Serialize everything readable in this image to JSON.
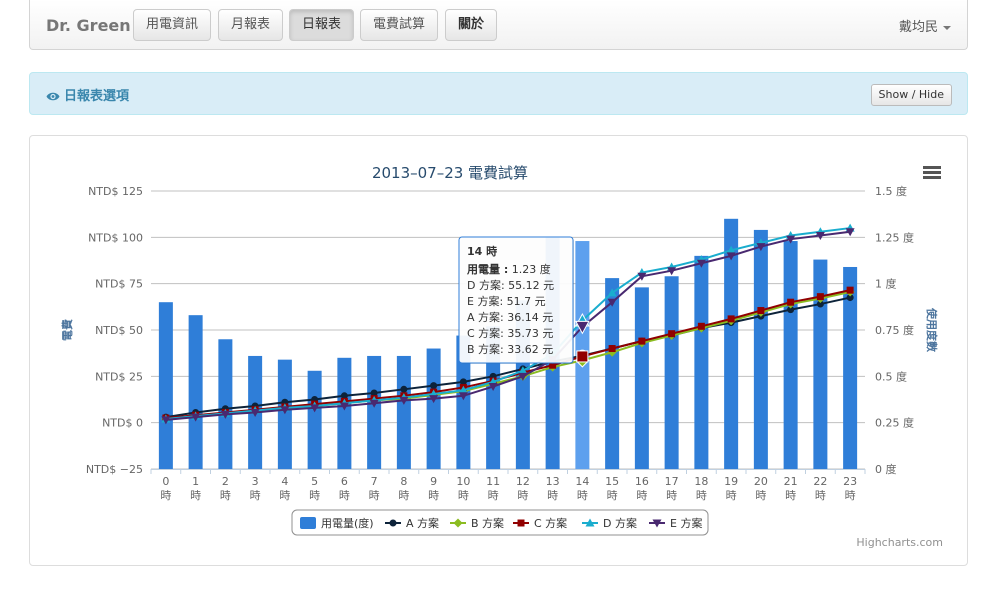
{
  "nav": {
    "brand": "Dr. Green",
    "items": [
      "用電資訊",
      "月報表",
      "日報表",
      "電費試算",
      "關於"
    ],
    "active_index": 2,
    "user": "戴均民"
  },
  "options_bar": {
    "title": "日報表選項",
    "toggle_label": "Show / Hide"
  },
  "chart_data": {
    "type": "combo",
    "title": "2013–07–23 電費試算",
    "categories": [
      "0\n時",
      "1\n時",
      "2\n時",
      "3\n時",
      "4\n時",
      "5\n時",
      "6\n時",
      "7\n時",
      "8\n時",
      "9\n時",
      "10\n時",
      "11\n時",
      "12\n時",
      "13\n時",
      "14\n時",
      "15\n時",
      "16\n時",
      "17\n時",
      "18\n時",
      "19\n時",
      "20\n時",
      "21\n時",
      "22\n時",
      "23\n時"
    ],
    "left_axis": {
      "label": "電費",
      "range": [
        -25,
        125
      ],
      "ticks": [
        "NTD$ −25",
        "NTD$ 0",
        "NTD$ 25",
        "NTD$ 50",
        "NTD$ 75",
        "NTD$ 100",
        "NTD$ 125"
      ]
    },
    "right_axis": {
      "label": "使用度數",
      "range": [
        0,
        1.5
      ],
      "ticks": [
        "0 度",
        "0.25 度",
        "0.5 度",
        "0.75 度",
        "1 度",
        "1.25 度",
        "1.5 度"
      ]
    },
    "grid": true,
    "legend_position": "bottom",
    "highlight_index": 14,
    "series": [
      {
        "name": "用電量(度)",
        "type": "bar",
        "axis": "right",
        "color": "#2f7ed8",
        "highlight_color": "#5da0ee",
        "values": [
          0.9,
          0.83,
          0.7,
          0.61,
          0.59,
          0.53,
          0.6,
          0.61,
          0.61,
          0.65,
          0.72,
          0.77,
          0.91,
          1.25,
          1.23,
          1.03,
          0.98,
          1.04,
          1.15,
          1.35,
          1.29,
          1.23,
          1.13,
          1.09
        ]
      },
      {
        "name": "A 方案",
        "type": "line",
        "axis": "left",
        "color": "#0d233a",
        "marker": "circle",
        "values": [
          3,
          5.5,
          7.5,
          9,
          11,
          12.5,
          14.5,
          16,
          18,
          20,
          22,
          25,
          29,
          33,
          36.14,
          40,
          44,
          47,
          51,
          54,
          57.5,
          61,
          64,
          67.5
        ]
      },
      {
        "name": "B 方案",
        "type": "line",
        "axis": "left",
        "color": "#8bbc21",
        "marker": "diamond",
        "values": [
          2,
          3.5,
          5,
          6.5,
          8,
          9,
          10.5,
          12,
          13,
          15,
          17,
          21,
          25,
          30,
          33.62,
          38,
          43,
          47,
          51,
          55,
          59.5,
          64,
          67,
          70.5
        ]
      },
      {
        "name": "C 方案",
        "type": "line",
        "axis": "left",
        "color": "#910000",
        "marker": "square",
        "values": [
          2.5,
          4,
          5.5,
          7,
          8.5,
          10,
          11.5,
          13,
          14.5,
          16.5,
          19,
          22.5,
          27,
          31,
          35.73,
          40,
          44,
          48,
          52,
          56,
          60.5,
          65,
          68,
          71.5
        ]
      },
      {
        "name": "D 方案",
        "type": "line",
        "axis": "left",
        "color": "#1aadce",
        "marker": "triangle",
        "values": [
          2,
          3.5,
          5,
          6.5,
          8,
          9,
          10.5,
          12,
          13.5,
          15.5,
          17.5,
          22,
          28,
          37,
          55.12,
          70,
          81,
          84,
          88,
          93,
          97,
          101,
          103,
          105
        ]
      },
      {
        "name": "E 方案",
        "type": "line",
        "axis": "left",
        "color": "#492970",
        "marker": "triangle-down",
        "values": [
          1.5,
          3,
          4.5,
          5.5,
          7,
          8,
          9,
          10.5,
          12,
          13,
          14.5,
          19.5,
          25,
          34,
          51.7,
          65,
          79,
          82,
          86,
          90,
          95,
          99,
          101,
          103
        ]
      }
    ],
    "tooltip": {
      "title": "14 時",
      "rows": [
        {
          "label": "用電量 :",
          "value": "1.23 度"
        },
        {
          "label": "D 方案:",
          "value": "55.12 元"
        },
        {
          "label": "E 方案:",
          "value": "51.7 元"
        },
        {
          "label": "A 方案:",
          "value": "36.14 元"
        },
        {
          "label": "C 方案:",
          "value": "35.73 元"
        },
        {
          "label": "B 方案:",
          "value": "33.62 元"
        }
      ]
    },
    "credits": "Highcharts.com"
  }
}
